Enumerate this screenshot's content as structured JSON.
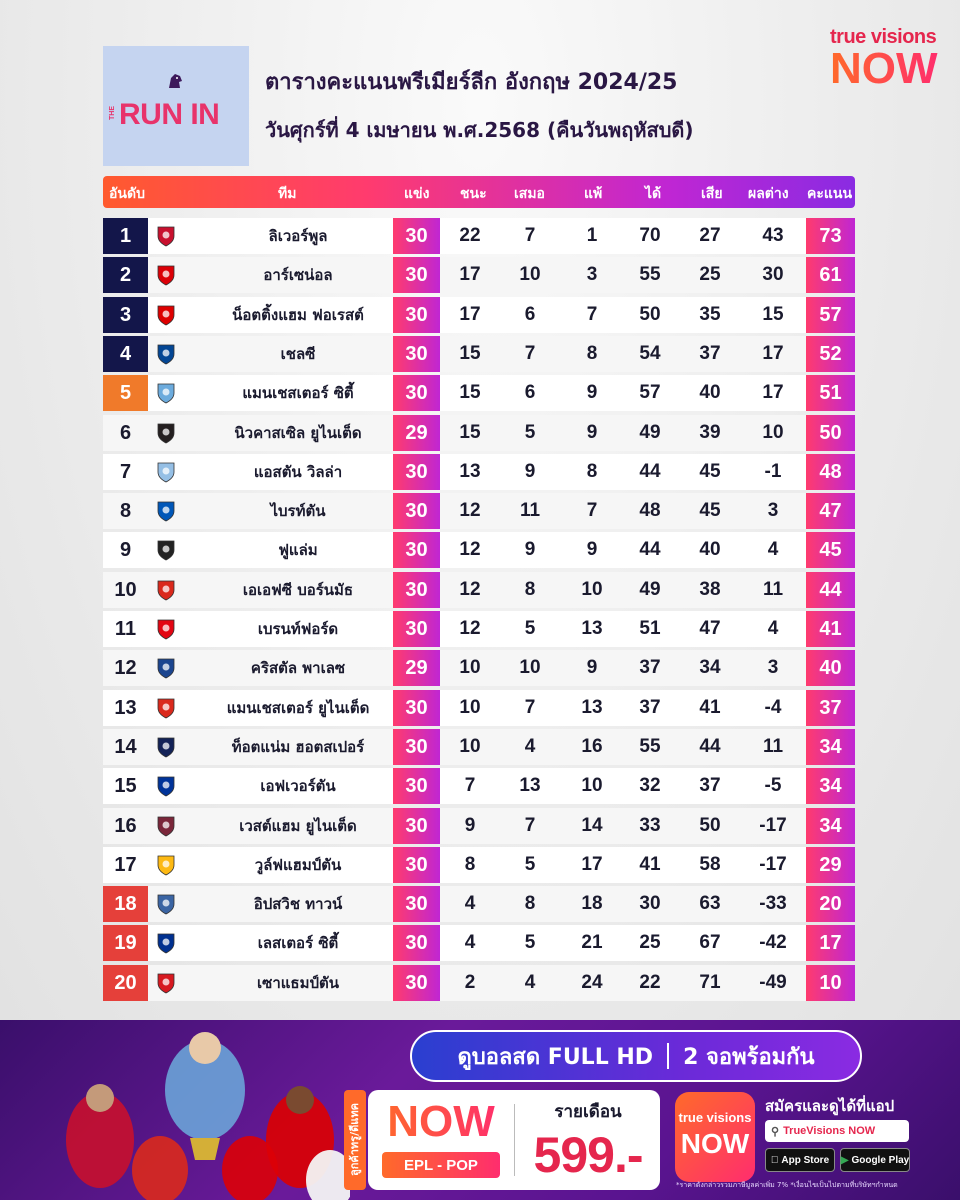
{
  "header": {
    "logo_the": "THE",
    "logo_runin": "RUN IN",
    "title": "ตารางคะแนนพรีเมียร์ลีก อังกฤษ 2024/25",
    "subtitle": "วันศุกร์ที่ 4 เมษายน พ.ศ.2568 (คืนวันพฤหัสบดี)",
    "brand_top": "true visions",
    "brand_now": "NOW"
  },
  "columns": {
    "rank": "อันดับ",
    "team": "ทีม",
    "played": "แข่ง",
    "won": "ชนะ",
    "drawn": "เสมอ",
    "lost": "แพ้",
    "gf": "ได้",
    "ga": "เสีย",
    "gd": "ผลต่าง",
    "pts": "คะแนน"
  },
  "colors": {
    "ucl": "#13164a",
    "uel": "#f07a2a",
    "relegation": "#e5403a",
    "accent_pink": "#ff3b6e",
    "accent_purple": "#c026d3"
  },
  "standings": [
    {
      "rank": "1",
      "zone": "ucl",
      "crest": "liverpool-crest",
      "crest_color": "#c8102e",
      "team": "ลิเวอร์พูล",
      "p": "30",
      "w": "22",
      "d": "7",
      "l": "1",
      "gf": "70",
      "ga": "27",
      "gd": "43",
      "pts": "73"
    },
    {
      "rank": "2",
      "zone": "ucl",
      "crest": "arsenal-crest",
      "crest_color": "#db0007",
      "team": "อาร์เซน่อล",
      "p": "30",
      "w": "17",
      "d": "10",
      "l": "3",
      "gf": "55",
      "ga": "25",
      "gd": "30",
      "pts": "61"
    },
    {
      "rank": "3",
      "zone": "ucl",
      "crest": "nottingham-forest-crest",
      "crest_color": "#dd0000",
      "team": "น็อตติ้งแฮม ฟอเรสต์",
      "p": "30",
      "w": "17",
      "d": "6",
      "l": "7",
      "gf": "50",
      "ga": "35",
      "gd": "15",
      "pts": "57"
    },
    {
      "rank": "4",
      "zone": "ucl",
      "crest": "chelsea-crest",
      "crest_color": "#034694",
      "team": "เชลซี",
      "p": "30",
      "w": "15",
      "d": "7",
      "l": "8",
      "gf": "54",
      "ga": "37",
      "gd": "17",
      "pts": "52"
    },
    {
      "rank": "5",
      "zone": "uel",
      "crest": "manchester-city-crest",
      "crest_color": "#6cabdd",
      "team": "แมนเชสเตอร์ ซิตี้",
      "p": "30",
      "w": "15",
      "d": "6",
      "l": "9",
      "gf": "57",
      "ga": "40",
      "gd": "17",
      "pts": "51"
    },
    {
      "rank": "6",
      "zone": "",
      "crest": "newcastle-crest",
      "crest_color": "#241f20",
      "team": "นิวคาสเซิล ยูไนเต็ด",
      "p": "29",
      "w": "15",
      "d": "5",
      "l": "9",
      "gf": "49",
      "ga": "39",
      "gd": "10",
      "pts": "50"
    },
    {
      "rank": "7",
      "zone": "",
      "crest": "aston-villa-crest",
      "crest_color": "#95bfe5",
      "team": "แอสตัน วิลล่า",
      "p": "30",
      "w": "13",
      "d": "9",
      "l": "8",
      "gf": "44",
      "ga": "45",
      "gd": "-1",
      "pts": "48"
    },
    {
      "rank": "8",
      "zone": "",
      "crest": "brighton-crest",
      "crest_color": "#0057b8",
      "team": "ไบรท์ตัน",
      "p": "30",
      "w": "12",
      "d": "11",
      "l": "7",
      "gf": "48",
      "ga": "45",
      "gd": "3",
      "pts": "47"
    },
    {
      "rank": "9",
      "zone": "",
      "crest": "fulham-crest",
      "crest_color": "#222222",
      "team": "ฟูแล่ม",
      "p": "30",
      "w": "12",
      "d": "9",
      "l": "9",
      "gf": "44",
      "ga": "40",
      "gd": "4",
      "pts": "45"
    },
    {
      "rank": "10",
      "zone": "",
      "crest": "bournemouth-crest",
      "crest_color": "#da291c",
      "team": "เอเอฟซี บอร์นมัธ",
      "p": "30",
      "w": "12",
      "d": "8",
      "l": "10",
      "gf": "49",
      "ga": "38",
      "gd": "11",
      "pts": "44"
    },
    {
      "rank": "11",
      "zone": "",
      "crest": "brentford-crest",
      "crest_color": "#e30613",
      "team": "เบรนท์ฟอร์ด",
      "p": "30",
      "w": "12",
      "d": "5",
      "l": "13",
      "gf": "51",
      "ga": "47",
      "gd": "4",
      "pts": "41"
    },
    {
      "rank": "12",
      "zone": "",
      "crest": "crystal-palace-crest",
      "crest_color": "#1b458f",
      "team": "คริสตัล พาเลซ",
      "p": "29",
      "w": "10",
      "d": "10",
      "l": "9",
      "gf": "37",
      "ga": "34",
      "gd": "3",
      "pts": "40"
    },
    {
      "rank": "13",
      "zone": "",
      "crest": "manchester-united-crest",
      "crest_color": "#da291c",
      "team": "แมนเชสเตอร์ ยูไนเต็ด",
      "p": "30",
      "w": "10",
      "d": "7",
      "l": "13",
      "gf": "37",
      "ga": "41",
      "gd": "-4",
      "pts": "37"
    },
    {
      "rank": "14",
      "zone": "",
      "crest": "tottenham-crest",
      "crest_color": "#132257",
      "team": "ท็อตแน่ม ฮอตสเปอร์",
      "p": "30",
      "w": "10",
      "d": "4",
      "l": "16",
      "gf": "55",
      "ga": "44",
      "gd": "11",
      "pts": "34"
    },
    {
      "rank": "15",
      "zone": "",
      "crest": "everton-crest",
      "crest_color": "#003399",
      "team": "เอฟเวอร์ตัน",
      "p": "30",
      "w": "7",
      "d": "13",
      "l": "10",
      "gf": "32",
      "ga": "37",
      "gd": "-5",
      "pts": "34"
    },
    {
      "rank": "16",
      "zone": "",
      "crest": "west-ham-crest",
      "crest_color": "#7a263a",
      "team": "เวสต์แฮม ยูไนเต็ด",
      "p": "30",
      "w": "9",
      "d": "7",
      "l": "14",
      "gf": "33",
      "ga": "50",
      "gd": "-17",
      "pts": "34"
    },
    {
      "rank": "17",
      "zone": "",
      "crest": "wolves-crest",
      "crest_color": "#fdb913",
      "team": "วูล์ฟแฮมป์ตัน",
      "p": "30",
      "w": "8",
      "d": "5",
      "l": "17",
      "gf": "41",
      "ga": "58",
      "gd": "-17",
      "pts": "29"
    },
    {
      "rank": "18",
      "zone": "rel",
      "crest": "ipswich-crest",
      "crest_color": "#3a64a3",
      "team": "อิปสวิช ทาวน์",
      "p": "30",
      "w": "4",
      "d": "8",
      "l": "18",
      "gf": "30",
      "ga": "63",
      "gd": "-33",
      "pts": "20"
    },
    {
      "rank": "19",
      "zone": "rel",
      "crest": "leicester-crest",
      "crest_color": "#003090",
      "team": "เลสเตอร์ ซิตี้",
      "p": "30",
      "w": "4",
      "d": "5",
      "l": "21",
      "gf": "25",
      "ga": "67",
      "gd": "-42",
      "pts": "17"
    },
    {
      "rank": "20",
      "zone": "rel",
      "crest": "southampton-crest",
      "crest_color": "#d71920",
      "team": "เซาแธมป์ตัน",
      "p": "30",
      "w": "2",
      "d": "4",
      "l": "24",
      "gf": "22",
      "ga": "71",
      "gd": "-49",
      "pts": "10"
    }
  ],
  "promo": {
    "pill_left": "ดูบอลสด FULL HD",
    "pill_right": "2 จอพร้อมกัน",
    "side_tag": "ลูกค้าทรู/ดีแทค",
    "package_now": "NOW",
    "package_name": "EPL - POP",
    "month_label": "รายเดือน",
    "price": "599.-",
    "app_tv": "true visions",
    "app_now": "NOW",
    "signup": "สมัครและดูได้ที่แอป",
    "search_text": "TrueVisions NOW",
    "app_store": "App Store",
    "google_play": "Google Play",
    "disclaimer": "*ราคาดังกล่าวรวมภาษีมูลค่าเพิ่ม 7% *เงื่อนไขเป็นไปตามที่บริษัทฯกำหนด"
  }
}
